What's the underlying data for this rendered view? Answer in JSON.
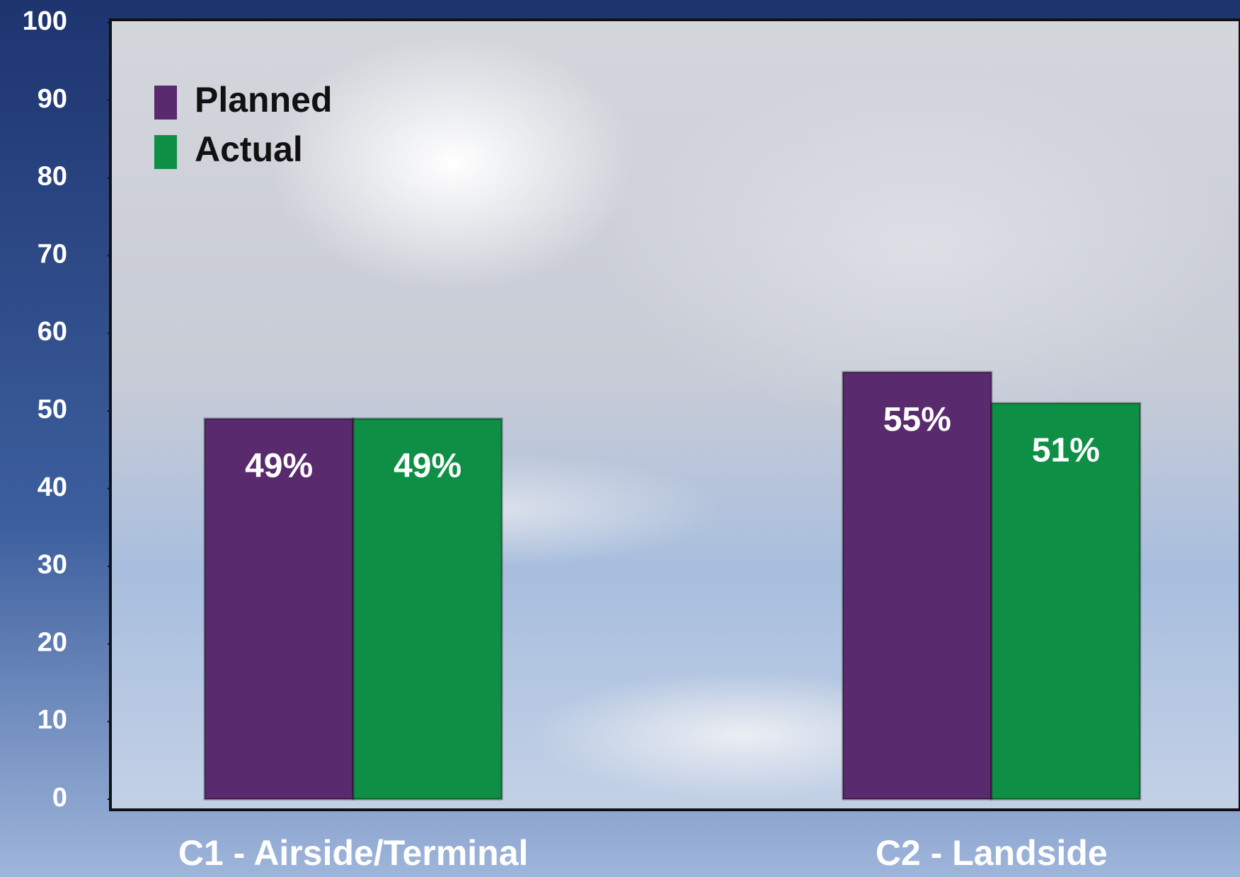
{
  "chart_data": {
    "type": "bar",
    "categories": [
      "C1 - Airside/Terminal",
      "C2 - Landside"
    ],
    "series": [
      {
        "name": "Planned",
        "color": "#5a2a6e",
        "values": [
          49,
          55
        ],
        "value_labels": [
          "49%",
          "55%"
        ]
      },
      {
        "name": "Actual",
        "color": "#0f8f45",
        "values": [
          49,
          51
        ],
        "value_labels": [
          "49%",
          "51%"
        ]
      }
    ],
    "ylim": [
      0,
      100
    ],
    "yticks": [
      0,
      10,
      20,
      30,
      40,
      50,
      60,
      70,
      80,
      90,
      100
    ],
    "legend": "top-left"
  }
}
